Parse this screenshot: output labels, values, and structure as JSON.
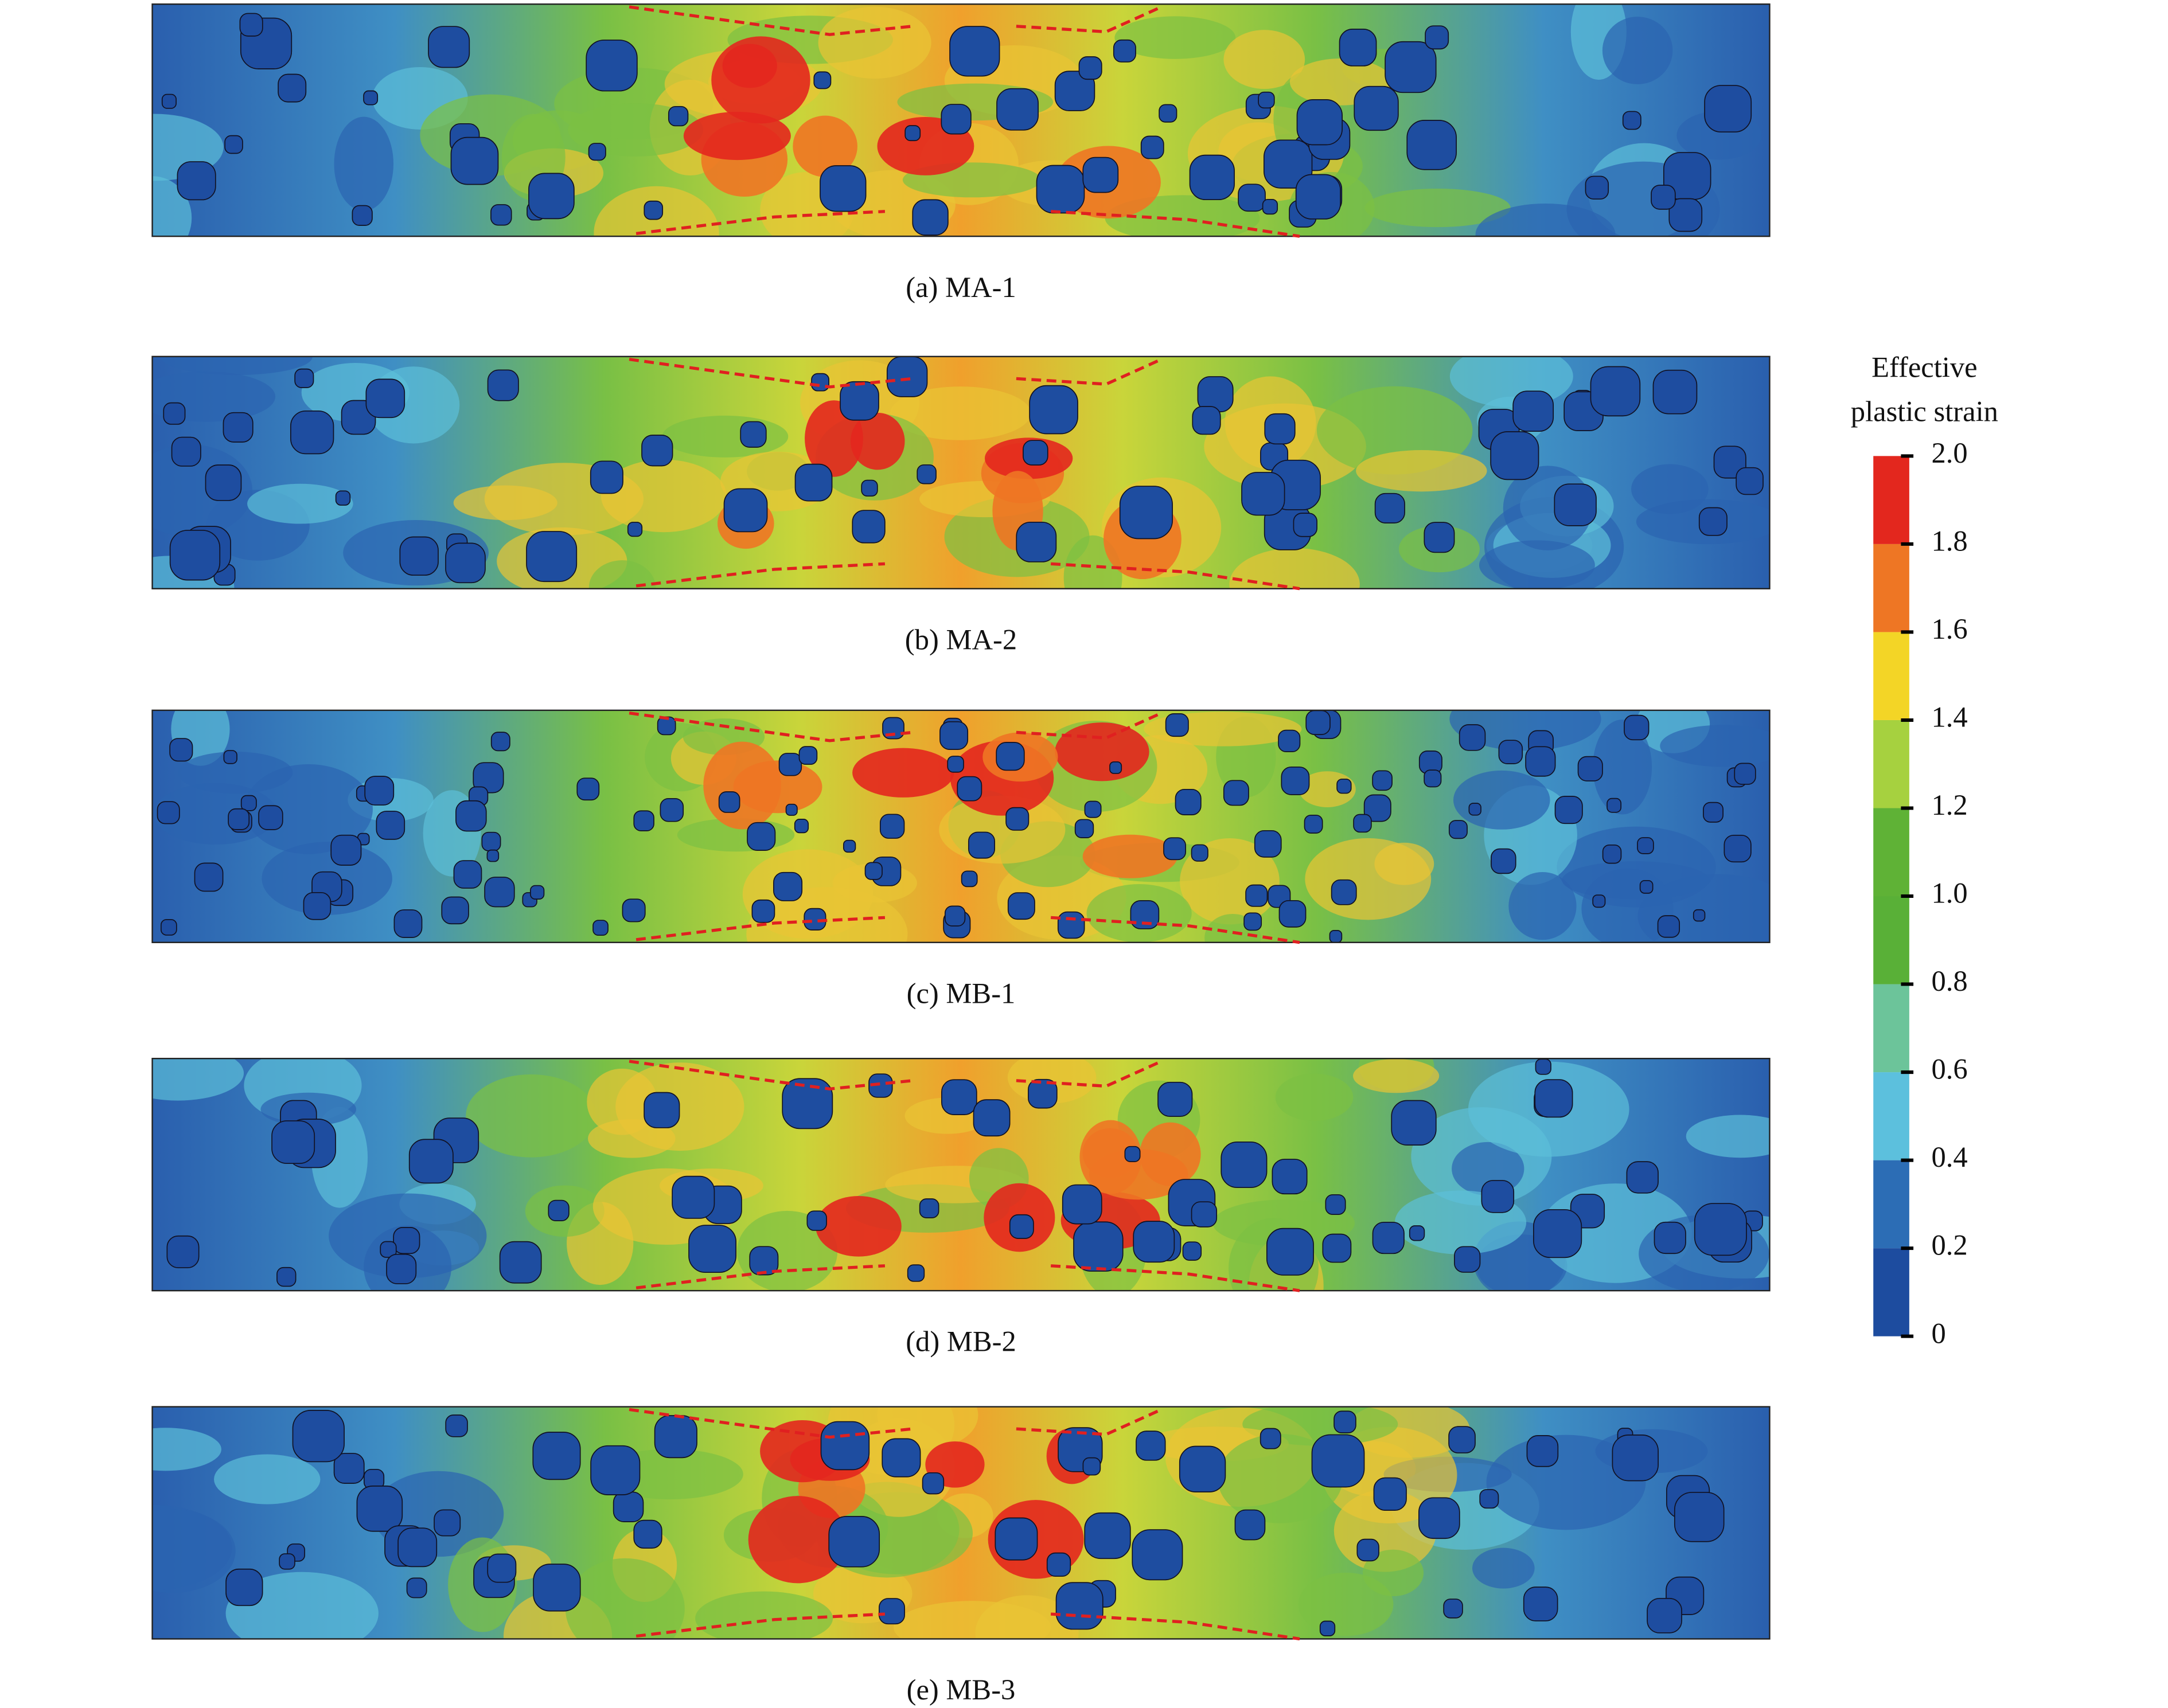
{
  "panels": [
    {
      "caption": "(a) MA-1"
    },
    {
      "caption": "(b) MA-2"
    },
    {
      "caption": "(c) MB-1"
    },
    {
      "caption": "(d) MB-2"
    },
    {
      "caption": "(e) MB-3"
    }
  ],
  "colorbar": {
    "title": [
      "Effective",
      "plastic strain"
    ],
    "ticks": [
      0,
      0.2,
      0.4,
      0.6,
      0.8,
      {
        "value": 1,
        "label": "1.0"
      },
      1.2,
      1.4,
      1.6,
      1.8,
      {
        "value": 2,
        "label": "2.0"
      }
    ],
    "colors": [
      "#1d4c9f",
      "#2c6db5",
      "#5cc0dd",
      "#6cc49a",
      "#59b037",
      "#5fb236",
      "#a6d13f",
      "#f3d526",
      "#ee7624",
      "#e3271e"
    ]
  }
}
